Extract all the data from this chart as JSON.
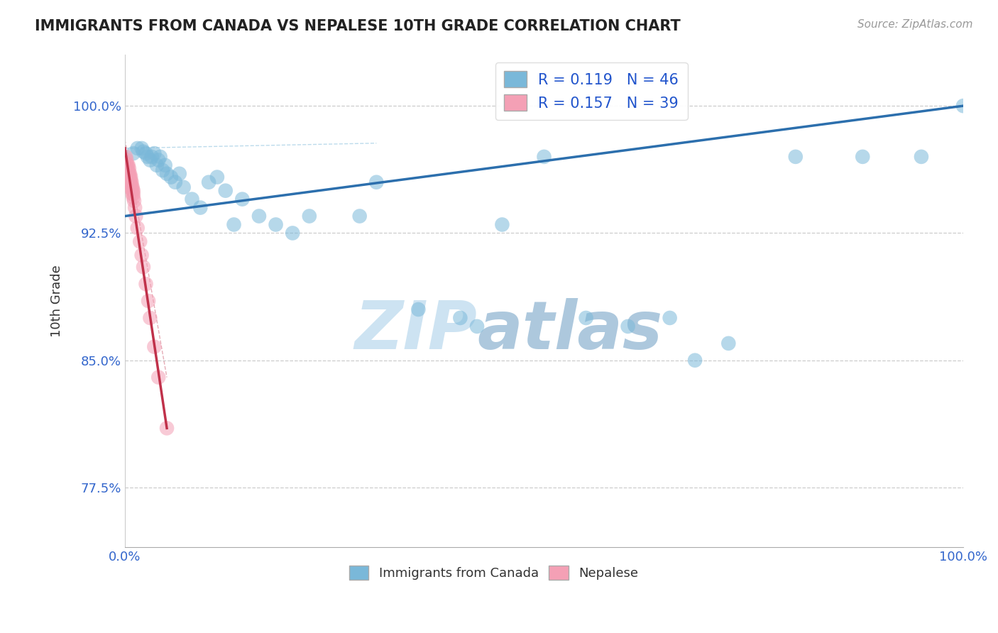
{
  "title": "IMMIGRANTS FROM CANADA VS NEPALESE 10TH GRADE CORRELATION CHART",
  "source": "Source: ZipAtlas.com",
  "ylabel": "10th Grade",
  "xlim": [
    0.0,
    1.0
  ],
  "ylim": [
    0.74,
    1.03
  ],
  "yticks": [
    0.775,
    0.85,
    0.925,
    1.0
  ],
  "ytick_labels": [
    "77.5%",
    "85.0%",
    "92.5%",
    "100.0%"
  ],
  "xtick_labels": [
    "0.0%",
    "100.0%"
  ],
  "xticks": [
    0.0,
    1.0
  ],
  "R_blue": 0.119,
  "N_blue": 46,
  "R_pink": 0.157,
  "N_pink": 39,
  "blue_color": "#7ab8d9",
  "pink_color": "#f4a0b5",
  "blue_line_color": "#2c6fad",
  "pink_line_color": "#c0314a",
  "scatter_blue_x": [
    0.01,
    0.015,
    0.02,
    0.022,
    0.025,
    0.027,
    0.03,
    0.032,
    0.035,
    0.038,
    0.04,
    0.042,
    0.045,
    0.048,
    0.05,
    0.055,
    0.06,
    0.065,
    0.07,
    0.08,
    0.09,
    0.1,
    0.11,
    0.12,
    0.13,
    0.14,
    0.16,
    0.18,
    0.2,
    0.22,
    0.28,
    0.3,
    0.35,
    0.4,
    0.42,
    0.45,
    0.5,
    0.55,
    0.6,
    0.65,
    0.68,
    0.72,
    0.8,
    0.88,
    0.95,
    1.0
  ],
  "scatter_blue_y": [
    0.972,
    0.975,
    0.975,
    0.973,
    0.972,
    0.97,
    0.968,
    0.97,
    0.972,
    0.965,
    0.968,
    0.97,
    0.962,
    0.965,
    0.96,
    0.958,
    0.955,
    0.96,
    0.952,
    0.945,
    0.94,
    0.955,
    0.958,
    0.95,
    0.93,
    0.945,
    0.935,
    0.93,
    0.925,
    0.935,
    0.935,
    0.955,
    0.88,
    0.875,
    0.87,
    0.93,
    0.97,
    0.875,
    0.87,
    0.875,
    0.85,
    0.86,
    0.97,
    0.97,
    0.97,
    1.0
  ],
  "scatter_pink_x": [
    0.001,
    0.002,
    0.002,
    0.003,
    0.003,
    0.004,
    0.004,
    0.004,
    0.005,
    0.005,
    0.005,
    0.006,
    0.006,
    0.006,
    0.007,
    0.007,
    0.007,
    0.008,
    0.008,
    0.008,
    0.009,
    0.009,
    0.009,
    0.01,
    0.01,
    0.01,
    0.011,
    0.012,
    0.013,
    0.015,
    0.018,
    0.02,
    0.022,
    0.025,
    0.028,
    0.03,
    0.035,
    0.04,
    0.05
  ],
  "scatter_pink_y": [
    0.97,
    0.968,
    0.966,
    0.965,
    0.963,
    0.965,
    0.962,
    0.96,
    0.963,
    0.96,
    0.958,
    0.96,
    0.958,
    0.956,
    0.958,
    0.956,
    0.954,
    0.955,
    0.953,
    0.951,
    0.952,
    0.95,
    0.948,
    0.95,
    0.948,
    0.946,
    0.944,
    0.94,
    0.935,
    0.928,
    0.92,
    0.912,
    0.905,
    0.895,
    0.885,
    0.875,
    0.858,
    0.84,
    0.81
  ],
  "blue_trend_x": [
    0.0,
    1.0
  ],
  "blue_trend_y": [
    0.935,
    1.0
  ],
  "pink_trend_x": [
    0.0,
    0.05
  ],
  "pink_trend_y": [
    0.975,
    0.81
  ],
  "watermark_top": "ZIP",
  "watermark_bottom": "atlas",
  "watermark_color_top": "#c8dff0",
  "watermark_color_bottom": "#b0cce8",
  "grid_color": "#cccccc"
}
